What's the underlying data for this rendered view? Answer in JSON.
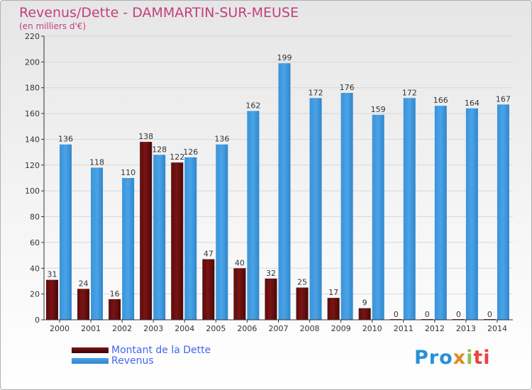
{
  "title": "Revenus/Dette - DAMMARTIN-SUR-MEUSE",
  "subtitle": "(en milliers d'€)",
  "logo_text": "Proxiti",
  "colors": {
    "debt": "#7a1414",
    "revenue": "#4aa3e6",
    "axis": "#333333",
    "grid": "#d8d8d8",
    "title": "#c2407a",
    "legend_text": "#4466ee"
  },
  "chart_data": {
    "type": "bar",
    "categories": [
      "2000",
      "2001",
      "2002",
      "2003",
      "2004",
      "2005",
      "2006",
      "2007",
      "2008",
      "2009",
      "2010",
      "2011",
      "2012",
      "2013",
      "2014"
    ],
    "series": [
      {
        "name": "Montant de la Dette",
        "values": [
          31,
          24,
          16,
          138,
          122,
          47,
          40,
          32,
          25,
          17,
          9,
          0,
          0,
          0,
          0
        ]
      },
      {
        "name": "Revenus",
        "values": [
          136,
          118,
          110,
          128,
          126,
          136,
          162,
          199,
          172,
          176,
          159,
          172,
          166,
          164,
          167
        ]
      }
    ],
    "ylim": [
      0,
      220
    ],
    "yticks": [
      0,
      20,
      40,
      60,
      80,
      100,
      120,
      140,
      160,
      180,
      200,
      220
    ],
    "grid": true,
    "legend_position": "bottom-left"
  }
}
